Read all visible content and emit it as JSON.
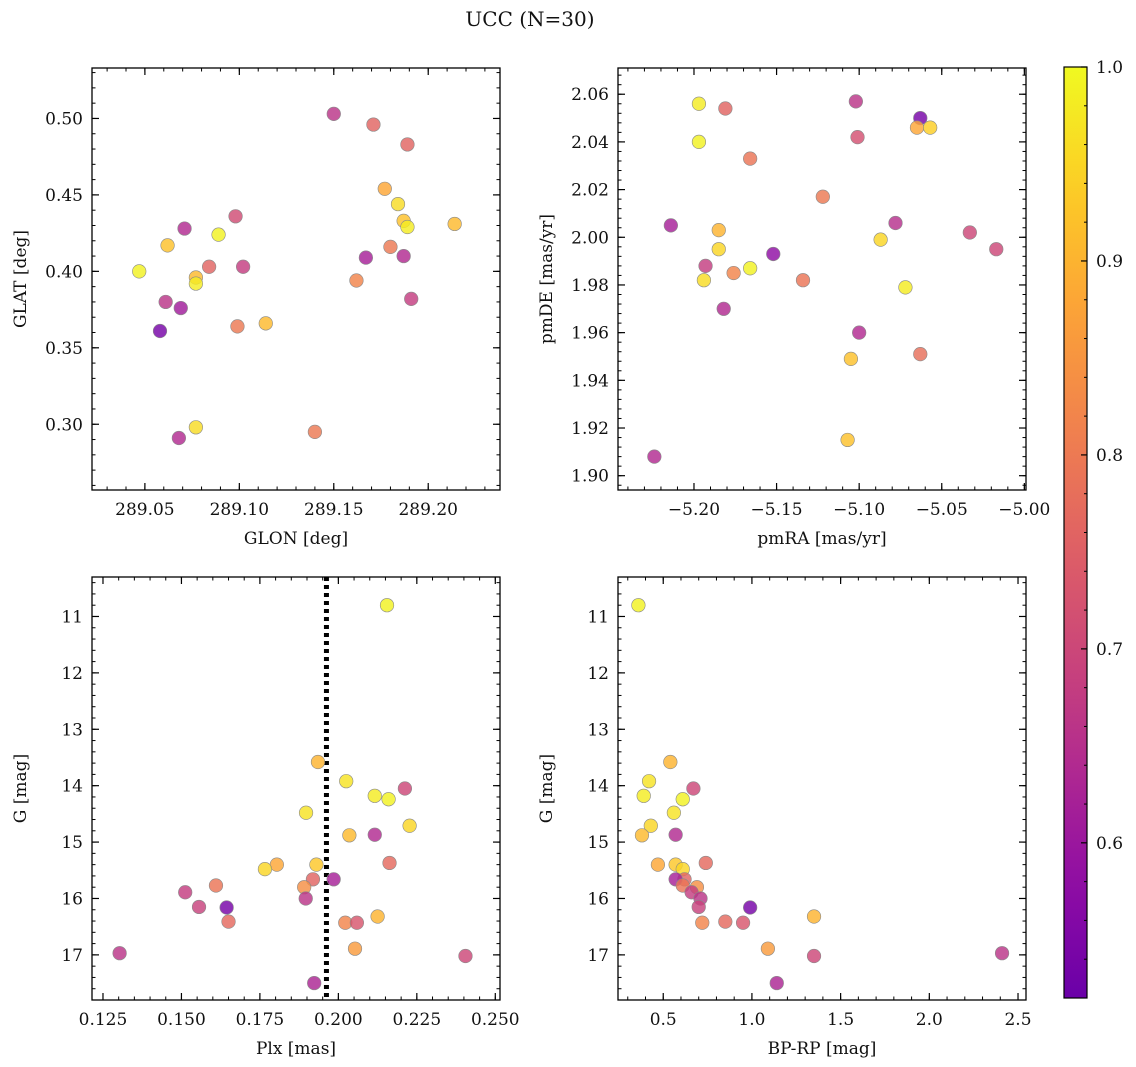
{
  "suptitle": "UCC (N=30)",
  "colorbar": {
    "cmap": "plasma",
    "range": [
      0.52,
      1.0
    ],
    "ticks": [
      0.6,
      0.7,
      0.8,
      0.9,
      1.0
    ],
    "tick_labels": [
      "0.6",
      "0.7",
      "0.8",
      "0.9",
      "1.0"
    ]
  },
  "chart_data": [
    {
      "type": "scatter",
      "xlabel": "GLON [deg]",
      "ylabel": "GLAT [deg]",
      "xlim": [
        289.022,
        289.238
      ],
      "ylim": [
        0.257,
        0.533
      ],
      "xticks": [
        289.05,
        289.1,
        289.15,
        289.2
      ],
      "xtick_labels": [
        "289.05",
        "289.10",
        "289.15",
        "289.20"
      ],
      "yticks": [
        0.3,
        0.35,
        0.4,
        0.45,
        0.5
      ],
      "ytick_labels": [
        "0.30",
        "0.35",
        "0.40",
        "0.45",
        "0.50"
      ],
      "invert_y": false,
      "points": [
        {
          "x": 289.15,
          "y": 0.503,
          "c": 0.66
        },
        {
          "x": 289.171,
          "y": 0.496,
          "c": 0.76
        },
        {
          "x": 289.189,
          "y": 0.483,
          "c": 0.76
        },
        {
          "x": 289.177,
          "y": 0.454,
          "c": 0.88
        },
        {
          "x": 289.184,
          "y": 0.444,
          "c": 0.96
        },
        {
          "x": 289.187,
          "y": 0.433,
          "c": 0.92
        },
        {
          "x": 289.189,
          "y": 0.429,
          "c": 0.98
        },
        {
          "x": 289.214,
          "y": 0.431,
          "c": 0.91
        },
        {
          "x": 289.18,
          "y": 0.416,
          "c": 0.8
        },
        {
          "x": 289.187,
          "y": 0.41,
          "c": 0.64
        },
        {
          "x": 289.167,
          "y": 0.409,
          "c": 0.62
        },
        {
          "x": 289.162,
          "y": 0.394,
          "c": 0.82
        },
        {
          "x": 289.191,
          "y": 0.382,
          "c": 0.68
        },
        {
          "x": 289.098,
          "y": 0.436,
          "c": 0.71
        },
        {
          "x": 289.071,
          "y": 0.428,
          "c": 0.64
        },
        {
          "x": 289.089,
          "y": 0.424,
          "c": 0.99
        },
        {
          "x": 289.062,
          "y": 0.417,
          "c": 0.92
        },
        {
          "x": 289.102,
          "y": 0.403,
          "c": 0.68
        },
        {
          "x": 289.084,
          "y": 0.403,
          "c": 0.76
        },
        {
          "x": 289.047,
          "y": 0.4,
          "c": 0.99
        },
        {
          "x": 289.077,
          "y": 0.396,
          "c": 0.91
        },
        {
          "x": 289.077,
          "y": 0.392,
          "c": 0.98
        },
        {
          "x": 289.061,
          "y": 0.38,
          "c": 0.66
        },
        {
          "x": 289.069,
          "y": 0.376,
          "c": 0.61
        },
        {
          "x": 289.114,
          "y": 0.366,
          "c": 0.91
        },
        {
          "x": 289.099,
          "y": 0.364,
          "c": 0.8
        },
        {
          "x": 289.058,
          "y": 0.361,
          "c": 0.54
        },
        {
          "x": 289.077,
          "y": 0.298,
          "c": 0.96
        },
        {
          "x": 289.14,
          "y": 0.295,
          "c": 0.8
        },
        {
          "x": 289.068,
          "y": 0.291,
          "c": 0.64
        }
      ]
    },
    {
      "type": "scatter",
      "xlabel": "pmRA [mas/yr]",
      "ylabel": "pmDE [mas/yr]",
      "xlim": [
        -5.246,
        -4.999
      ],
      "ylim": [
        1.894,
        2.071
      ],
      "xticks": [
        -5.2,
        -5.15,
        -5.1,
        -5.05,
        -5.0
      ],
      "xtick_labels": [
        "−5.20",
        "−5.15",
        "−5.10",
        "−5.05",
        "−5.00"
      ],
      "yticks": [
        1.9,
        1.92,
        1.94,
        1.96,
        1.98,
        2.0,
        2.02,
        2.04,
        2.06
      ],
      "ytick_labels": [
        "1.90",
        "1.92",
        "1.94",
        "1.96",
        "1.98",
        "2.00",
        "2.02",
        "2.04",
        "2.06"
      ],
      "invert_y": false,
      "points": [
        {
          "x": -5.197,
          "y": 2.056,
          "c": 0.98
        },
        {
          "x": -5.181,
          "y": 2.054,
          "c": 0.76
        },
        {
          "x": -5.102,
          "y": 2.057,
          "c": 0.66
        },
        {
          "x": -5.063,
          "y": 2.05,
          "c": 0.54
        },
        {
          "x": -5.065,
          "y": 2.046,
          "c": 0.88
        },
        {
          "x": -5.057,
          "y": 2.046,
          "c": 0.94
        },
        {
          "x": -5.101,
          "y": 2.042,
          "c": 0.72
        },
        {
          "x": -5.197,
          "y": 2.04,
          "c": 0.99
        },
        {
          "x": -5.166,
          "y": 2.033,
          "c": 0.79
        },
        {
          "x": -5.122,
          "y": 2.017,
          "c": 0.8
        },
        {
          "x": -5.078,
          "y": 2.006,
          "c": 0.65
        },
        {
          "x": -5.214,
          "y": 2.005,
          "c": 0.62
        },
        {
          "x": -5.185,
          "y": 2.003,
          "c": 0.9
        },
        {
          "x": -5.033,
          "y": 2.002,
          "c": 0.7
        },
        {
          "x": -5.087,
          "y": 1.999,
          "c": 0.95
        },
        {
          "x": -5.017,
          "y": 1.995,
          "c": 0.7
        },
        {
          "x": -5.185,
          "y": 1.995,
          "c": 0.95
        },
        {
          "x": -5.152,
          "y": 1.993,
          "c": 0.58
        },
        {
          "x": -5.193,
          "y": 1.988,
          "c": 0.68
        },
        {
          "x": -5.166,
          "y": 1.987,
          "c": 0.99
        },
        {
          "x": -5.176,
          "y": 1.985,
          "c": 0.82
        },
        {
          "x": -5.194,
          "y": 1.982,
          "c": 0.96
        },
        {
          "x": -5.134,
          "y": 1.982,
          "c": 0.79
        },
        {
          "x": -5.072,
          "y": 1.979,
          "c": 0.98
        },
        {
          "x": -5.182,
          "y": 1.97,
          "c": 0.64
        },
        {
          "x": -5.1,
          "y": 1.96,
          "c": 0.64
        },
        {
          "x": -5.063,
          "y": 1.951,
          "c": 0.78
        },
        {
          "x": -5.105,
          "y": 1.949,
          "c": 0.92
        },
        {
          "x": -5.107,
          "y": 1.915,
          "c": 0.92
        },
        {
          "x": -5.224,
          "y": 1.908,
          "c": 0.64
        }
      ]
    },
    {
      "type": "scatter",
      "xlabel": "Plx [mas]",
      "ylabel": "G [mag]",
      "xlim": [
        0.1215,
        0.2515
      ],
      "ylim": [
        10.3,
        17.8
      ],
      "xticks": [
        0.125,
        0.15,
        0.175,
        0.2,
        0.225,
        0.25
      ],
      "xtick_labels": [
        "0.125",
        "0.150",
        "0.175",
        "0.200",
        "0.225",
        "0.250"
      ],
      "yticks": [
        11,
        12,
        13,
        14,
        15,
        16,
        17
      ],
      "ytick_labels": [
        "11",
        "12",
        "13",
        "14",
        "15",
        "16",
        "17"
      ],
      "invert_y": true,
      "vline": 0.1962,
      "points": [
        {
          "x": 0.2155,
          "y": 10.8,
          "c": 0.99
        },
        {
          "x": 0.1935,
          "y": 13.58,
          "c": 0.9
        },
        {
          "x": 0.2025,
          "y": 13.92,
          "c": 0.97
        },
        {
          "x": 0.2212,
          "y": 14.05,
          "c": 0.7
        },
        {
          "x": 0.2116,
          "y": 14.18,
          "c": 0.98
        },
        {
          "x": 0.216,
          "y": 14.24,
          "c": 0.99
        },
        {
          "x": 0.1897,
          "y": 14.48,
          "c": 0.97
        },
        {
          "x": 0.2227,
          "y": 14.71,
          "c": 0.95
        },
        {
          "x": 0.2035,
          "y": 14.88,
          "c": 0.91
        },
        {
          "x": 0.2116,
          "y": 14.87,
          "c": 0.64
        },
        {
          "x": 0.2163,
          "y": 15.37,
          "c": 0.77
        },
        {
          "x": 0.193,
          "y": 15.4,
          "c": 0.93
        },
        {
          "x": 0.1804,
          "y": 15.4,
          "c": 0.88
        },
        {
          "x": 0.1766,
          "y": 15.48,
          "c": 0.95
        },
        {
          "x": 0.1919,
          "y": 15.66,
          "c": 0.76
        },
        {
          "x": 0.1985,
          "y": 15.66,
          "c": 0.62
        },
        {
          "x": 0.161,
          "y": 15.77,
          "c": 0.79
        },
        {
          "x": 0.1891,
          "y": 15.8,
          "c": 0.84
        },
        {
          "x": 0.1512,
          "y": 15.89,
          "c": 0.68
        },
        {
          "x": 0.1896,
          "y": 16.0,
          "c": 0.66
        },
        {
          "x": 0.1556,
          "y": 16.15,
          "c": 0.69
        },
        {
          "x": 0.1644,
          "y": 16.16,
          "c": 0.54
        },
        {
          "x": 0.2125,
          "y": 16.32,
          "c": 0.9
        },
        {
          "x": 0.165,
          "y": 16.41,
          "c": 0.77
        },
        {
          "x": 0.2022,
          "y": 16.43,
          "c": 0.82
        },
        {
          "x": 0.2059,
          "y": 16.43,
          "c": 0.73
        },
        {
          "x": 0.2053,
          "y": 16.89,
          "c": 0.86
        },
        {
          "x": 0.1303,
          "y": 16.97,
          "c": 0.66
        },
        {
          "x": 0.2405,
          "y": 17.02,
          "c": 0.7
        },
        {
          "x": 0.1923,
          "y": 17.5,
          "c": 0.63
        }
      ]
    },
    {
      "type": "scatter",
      "xlabel": "BP-RP [mag]",
      "ylabel": "G [mag]",
      "xlim": [
        0.245,
        2.545
      ],
      "ylim": [
        10.3,
        17.8
      ],
      "xticks": [
        0.5,
        1.0,
        1.5,
        2.0,
        2.5
      ],
      "xtick_labels": [
        "0.5",
        "1.0",
        "1.5",
        "2.0",
        "2.5"
      ],
      "yticks": [
        11,
        12,
        13,
        14,
        15,
        16,
        17
      ],
      "ytick_labels": [
        "11",
        "12",
        "13",
        "14",
        "15",
        "16",
        "17"
      ],
      "invert_y": true,
      "points": [
        {
          "x": 0.36,
          "y": 10.8,
          "c": 0.99
        },
        {
          "x": 0.54,
          "y": 13.58,
          "c": 0.9
        },
        {
          "x": 0.42,
          "y": 13.92,
          "c": 0.97
        },
        {
          "x": 0.67,
          "y": 14.05,
          "c": 0.7
        },
        {
          "x": 0.39,
          "y": 14.18,
          "c": 0.98
        },
        {
          "x": 0.61,
          "y": 14.24,
          "c": 0.99
        },
        {
          "x": 0.56,
          "y": 14.48,
          "c": 0.97
        },
        {
          "x": 0.43,
          "y": 14.71,
          "c": 0.95
        },
        {
          "x": 0.38,
          "y": 14.88,
          "c": 0.91
        },
        {
          "x": 0.57,
          "y": 14.87,
          "c": 0.64
        },
        {
          "x": 0.74,
          "y": 15.37,
          "c": 0.77
        },
        {
          "x": 0.57,
          "y": 15.4,
          "c": 0.93
        },
        {
          "x": 0.47,
          "y": 15.4,
          "c": 0.88
        },
        {
          "x": 0.61,
          "y": 15.48,
          "c": 0.95
        },
        {
          "x": 0.62,
          "y": 15.66,
          "c": 0.76
        },
        {
          "x": 0.57,
          "y": 15.66,
          "c": 0.62
        },
        {
          "x": 0.61,
          "y": 15.77,
          "c": 0.79
        },
        {
          "x": 0.69,
          "y": 15.8,
          "c": 0.84
        },
        {
          "x": 0.66,
          "y": 15.89,
          "c": 0.68
        },
        {
          "x": 0.71,
          "y": 16.0,
          "c": 0.66
        },
        {
          "x": 0.7,
          "y": 16.15,
          "c": 0.69
        },
        {
          "x": 0.99,
          "y": 16.16,
          "c": 0.54
        },
        {
          "x": 1.35,
          "y": 16.32,
          "c": 0.9
        },
        {
          "x": 0.85,
          "y": 16.41,
          "c": 0.77
        },
        {
          "x": 0.72,
          "y": 16.43,
          "c": 0.82
        },
        {
          "x": 0.95,
          "y": 16.43,
          "c": 0.73
        },
        {
          "x": 1.09,
          "y": 16.89,
          "c": 0.86
        },
        {
          "x": 2.41,
          "y": 16.97,
          "c": 0.66
        },
        {
          "x": 1.35,
          "y": 17.02,
          "c": 0.7
        },
        {
          "x": 1.14,
          "y": 17.5,
          "c": 0.63
        }
      ]
    }
  ]
}
